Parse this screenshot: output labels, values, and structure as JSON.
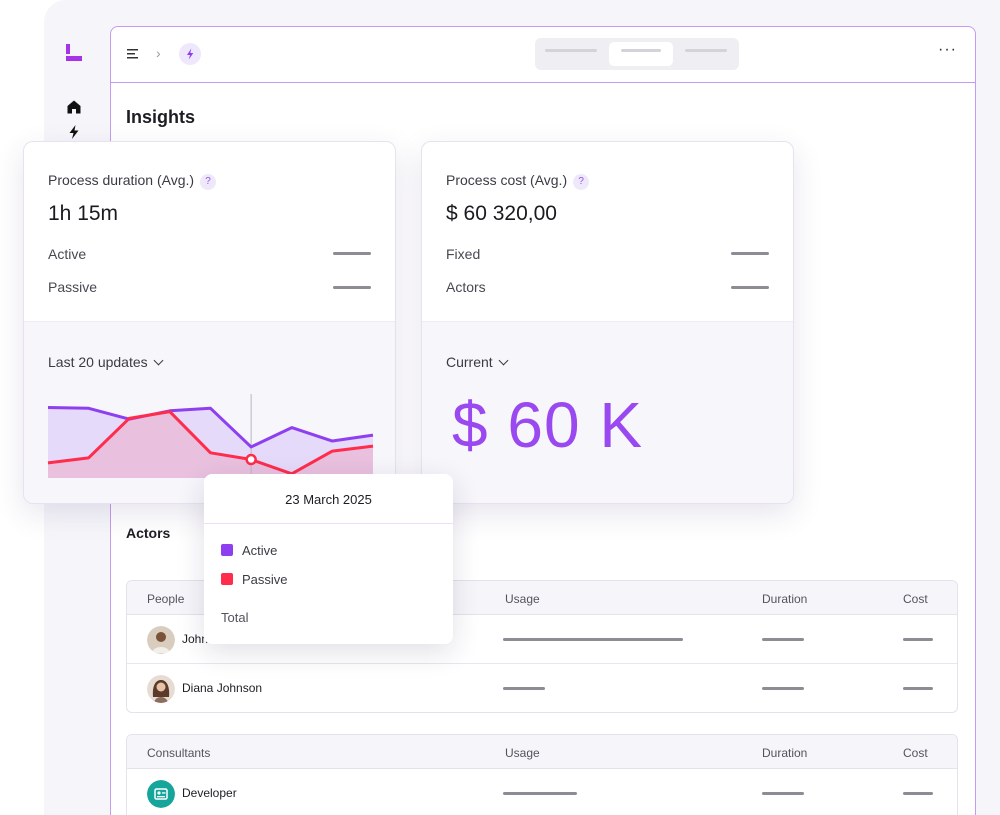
{
  "colors": {
    "accent": "#9a48f0",
    "active": "#8e3ff0",
    "passive": "#ff2c4b",
    "brand": "#a633e8"
  },
  "rail": {
    "icons": [
      "home-icon",
      "bolt-icon"
    ]
  },
  "topbar": {
    "icons": [
      "menu-icon",
      "chevron-right-icon",
      "bolt-icon",
      "more-icon"
    ]
  },
  "insights": {
    "title": "Insights"
  },
  "duration_card": {
    "title": "Process duration (Avg.)",
    "help": "?",
    "value": "1h 15m",
    "rows": [
      {
        "label": "Active"
      },
      {
        "label": "Passive"
      }
    ],
    "range_label": "Last 20 updates"
  },
  "cost_card": {
    "title": "Process cost (Avg.)",
    "help": "?",
    "value": "$ 60 320,00",
    "rows": [
      {
        "label": "Fixed"
      },
      {
        "label": "Actors"
      }
    ],
    "range_label": "Current",
    "big_value": "$ 60 K"
  },
  "chart_data": {
    "type": "area",
    "x": [
      1,
      2,
      3,
      4,
      5,
      6,
      7,
      8,
      9
    ],
    "series": [
      {
        "name": "Active",
        "values": [
          84,
          83,
          70,
          80,
          83,
          37,
          60,
          44,
          51
        ]
      },
      {
        "name": "Passive",
        "values": [
          18,
          24,
          71,
          79,
          30,
          22,
          5,
          32,
          38
        ]
      }
    ],
    "ylim": [
      0,
      100
    ],
    "highlight_index": 5
  },
  "tooltip": {
    "date": "23 March 2025",
    "entries": [
      {
        "label": "Active"
      },
      {
        "label": "Passive"
      }
    ],
    "total_label": "Total"
  },
  "actors": {
    "title": "Actors",
    "people_table": {
      "columns": [
        "People",
        "Usage",
        "Duration",
        "Cost"
      ],
      "rows": [
        {
          "name": "John"
        },
        {
          "name": "Diana Johnson"
        }
      ]
    },
    "consultants_table": {
      "columns": [
        "Consultants",
        "Usage",
        "Duration",
        "Cost"
      ],
      "rows": [
        {
          "name": "Developer",
          "icon": "id-badge-icon"
        }
      ]
    }
  }
}
